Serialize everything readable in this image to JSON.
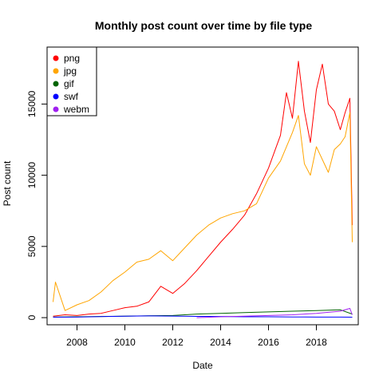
{
  "chart_data": {
    "type": "line",
    "title": "Monthly post count over time by file type",
    "xlabel": "Date",
    "ylabel": "Post count",
    "xlim": [
      2006.75,
      2019.75
    ],
    "ylim": [
      -500,
      19000
    ],
    "xticks": [
      2008,
      2010,
      2012,
      2014,
      2016,
      2018
    ],
    "xtick_labels": [
      "2008",
      "2010",
      "2012",
      "2014",
      "2016",
      "2018"
    ],
    "yticks": [
      0,
      5000,
      10000,
      15000
    ],
    "ytick_labels": [
      "0",
      "5000",
      "10000",
      "15000"
    ],
    "grid": false,
    "legend_position": "top-left",
    "series": [
      {
        "name": "png",
        "color": "#ff0000",
        "x": [
          2007.0,
          2007.5,
          2008.0,
          2008.5,
          2009.0,
          2009.5,
          2010.0,
          2010.5,
          2011.0,
          2011.5,
          2012.0,
          2012.5,
          2013.0,
          2013.5,
          2014.0,
          2014.5,
          2015.0,
          2015.5,
          2016.0,
          2016.5,
          2016.75,
          2017.0,
          2017.25,
          2017.5,
          2017.75,
          2018.0,
          2018.25,
          2018.5,
          2018.75,
          2019.0,
          2019.2,
          2019.4,
          2019.5
        ],
        "values": [
          100,
          200,
          150,
          250,
          300,
          500,
          700,
          800,
          1100,
          2200,
          1700,
          2400,
          3300,
          4300,
          5300,
          6200,
          7200,
          8700,
          10500,
          12800,
          15800,
          14000,
          18000,
          14500,
          12300,
          16000,
          17800,
          15000,
          14500,
          13200,
          14400,
          15400,
          6500
        ]
      },
      {
        "name": "jpg",
        "color": "#ffa500",
        "x": [
          2007.0,
          2007.1,
          2007.5,
          2008.0,
          2008.5,
          2009.0,
          2009.5,
          2010.0,
          2010.5,
          2011.0,
          2011.5,
          2012.0,
          2012.5,
          2013.0,
          2013.5,
          2014.0,
          2014.5,
          2015.0,
          2015.5,
          2016.0,
          2016.5,
          2017.0,
          2017.25,
          2017.5,
          2017.75,
          2018.0,
          2018.5,
          2018.75,
          2019.0,
          2019.2,
          2019.4,
          2019.5
        ],
        "values": [
          1100,
          2500,
          500,
          900,
          1200,
          1800,
          2600,
          3200,
          3900,
          4100,
          4700,
          4000,
          4900,
          5800,
          6500,
          7000,
          7300,
          7500,
          8000,
          9800,
          11000,
          13000,
          14200,
          10800,
          10000,
          12000,
          10200,
          11800,
          12200,
          12700,
          14400,
          5300
        ]
      },
      {
        "name": "gif",
        "color": "#006400",
        "x": [
          2007.0,
          2008.0,
          2009.0,
          2010.0,
          2011.0,
          2012.0,
          2013.0,
          2014.0,
          2015.0,
          2016.0,
          2017.0,
          2018.0,
          2019.0,
          2019.5
        ],
        "values": [
          40,
          60,
          80,
          100,
          130,
          150,
          250,
          300,
          350,
          400,
          450,
          500,
          550,
          250
        ]
      },
      {
        "name": "swf",
        "color": "#0000ff",
        "x": [
          2007.0,
          2008.0,
          2009.0,
          2010.0,
          2011.0,
          2012.0,
          2013.0,
          2014.0,
          2015.0,
          2016.0,
          2017.0,
          2018.0,
          2019.0,
          2019.5
        ],
        "values": [
          30,
          40,
          70,
          100,
          120,
          110,
          90,
          80,
          60,
          60,
          50,
          40,
          40,
          30
        ]
      },
      {
        "name": "webm",
        "color": "#a020f0",
        "x": [
          2013.0,
          2014.0,
          2015.0,
          2016.0,
          2017.0,
          2018.0,
          2019.0,
          2019.4,
          2019.5
        ],
        "values": [
          0,
          60,
          100,
          150,
          200,
          300,
          450,
          650,
          200
        ]
      }
    ]
  }
}
